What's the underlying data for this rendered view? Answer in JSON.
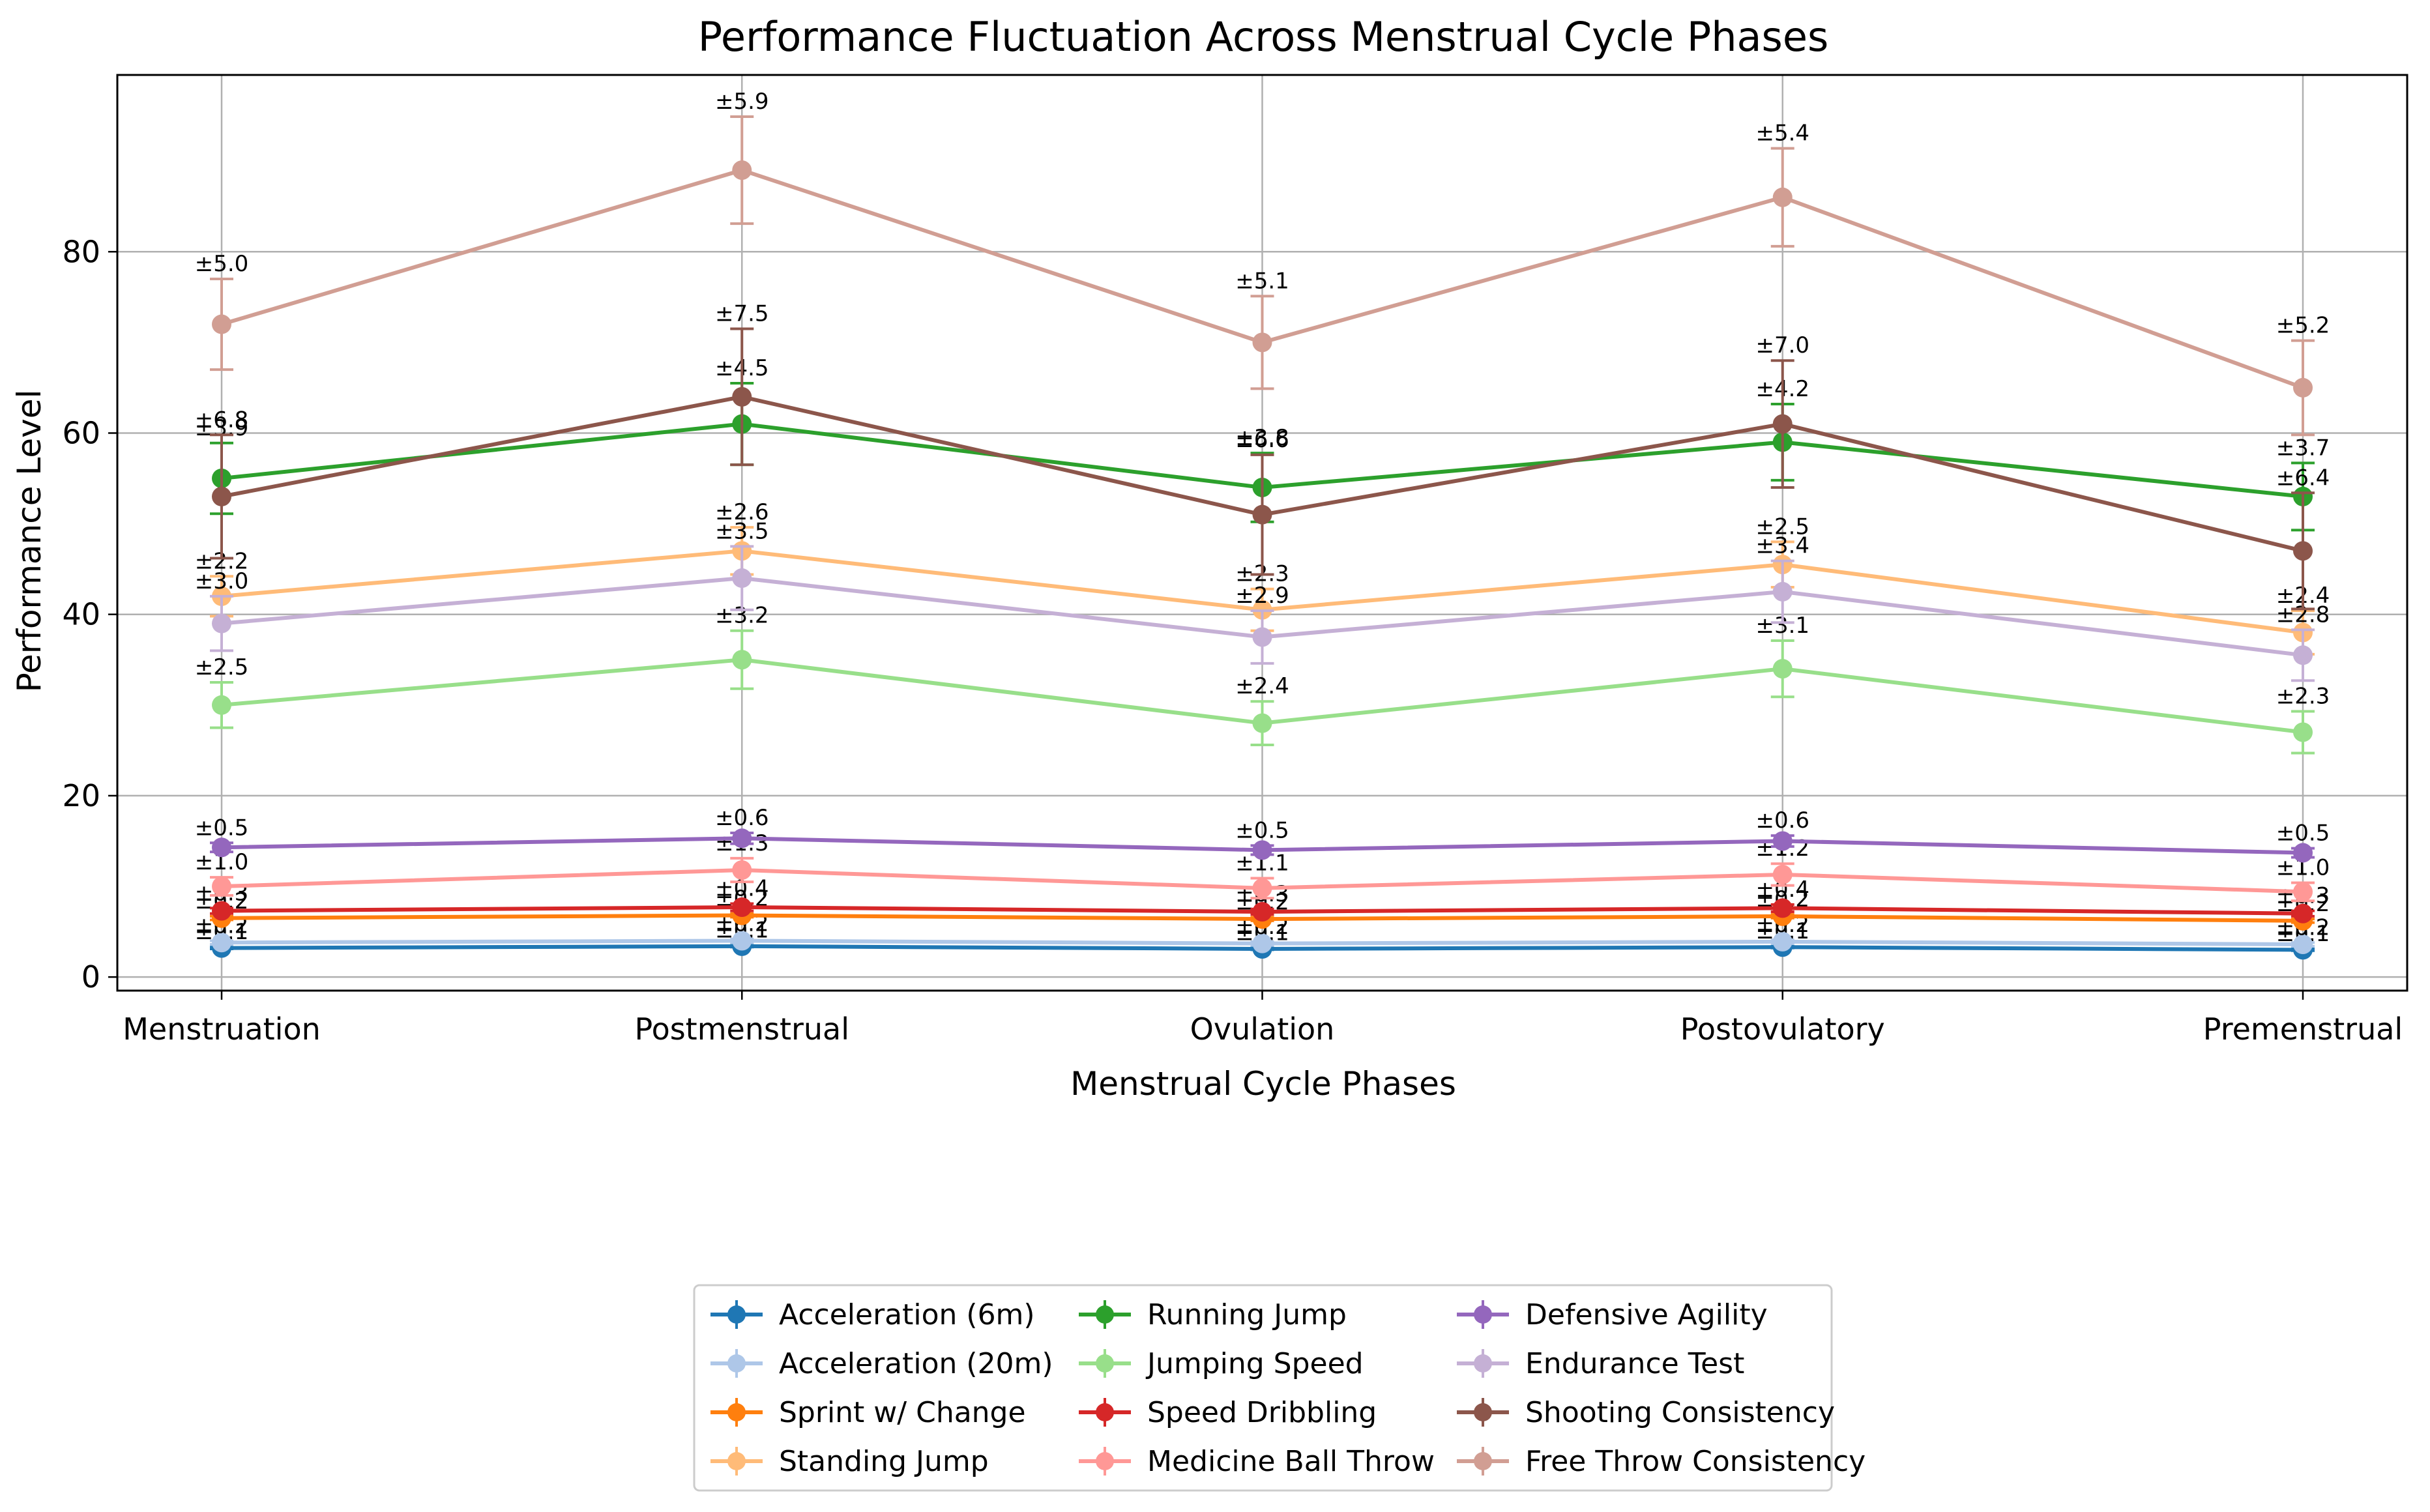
{
  "chart_data": {
    "type": "line",
    "title": "Performance Fluctuation Across Menstrual Cycle Phases",
    "xlabel": "Menstrual Cycle Phases",
    "ylabel": "Performance Level",
    "categories": [
      "Menstruation",
      "Postmenstrual",
      "Ovulation",
      "Postovulatory",
      "Premenstrual"
    ],
    "ylim": [
      -1.5,
      99.5
    ],
    "yticks": [
      0,
      20,
      40,
      60,
      80
    ],
    "grid": true,
    "legend_position": "bottom-center",
    "series": [
      {
        "name": "Acceleration (6m)",
        "color": "#1f77b4",
        "values": [
          3.2,
          3.4,
          3.1,
          3.3,
          3.0
        ],
        "errors": [
          "0.1",
          "0.1",
          "0.1",
          "0.1",
          "0.1"
        ]
      },
      {
        "name": "Acceleration (20m)",
        "color": "#aec7e8",
        "values": [
          3.8,
          4.0,
          3.7,
          3.9,
          3.6
        ],
        "errors": [
          "0.2",
          "0.2",
          "0.2",
          "0.2",
          "0.2"
        ]
      },
      {
        "name": "Sprint w/ Change",
        "color": "#ff7f0e",
        "values": [
          6.5,
          6.8,
          6.4,
          6.7,
          6.2
        ],
        "errors": [
          "0.2",
          "0.2",
          "0.2",
          "0.2",
          "0.2"
        ]
      },
      {
        "name": "Standing Jump",
        "color": "#ffbb78",
        "values": [
          42,
          47,
          40.5,
          45.5,
          38
        ],
        "errors": [
          "2.2",
          "2.6",
          "2.3",
          "2.5",
          "2.4"
        ]
      },
      {
        "name": "Running Jump",
        "color": "#2ca02c",
        "values": [
          55,
          61,
          54,
          59,
          53
        ],
        "errors": [
          "3.9",
          "4.5",
          "3.8",
          "4.2",
          "3.7"
        ]
      },
      {
        "name": "Jumping Speed",
        "color": "#98df8a",
        "values": [
          30,
          35,
          28,
          34,
          27
        ],
        "errors": [
          "2.5",
          "3.2",
          "2.4",
          "3.1",
          "2.3"
        ]
      },
      {
        "name": "Speed Dribbling",
        "color": "#d62728",
        "values": [
          7.3,
          7.7,
          7.2,
          7.6,
          7.0
        ],
        "errors": [
          "0.3",
          "0.4",
          "0.3",
          "0.4",
          "0.3"
        ]
      },
      {
        "name": "Medicine Ball Throw",
        "color": "#ff9896",
        "values": [
          10,
          11.8,
          9.8,
          11.3,
          9.4
        ],
        "errors": [
          "1.0",
          "1.3",
          "1.1",
          "1.2",
          "1.0"
        ]
      },
      {
        "name": "Defensive Agility",
        "color": "#9467bd",
        "values": [
          14.3,
          15.3,
          14.0,
          15.0,
          13.7
        ],
        "errors": [
          "0.5",
          "0.6",
          "0.5",
          "0.6",
          "0.5"
        ]
      },
      {
        "name": "Endurance Test",
        "color": "#c5b0d5",
        "values": [
          39,
          44,
          37.5,
          42.5,
          35.5
        ],
        "errors": [
          "3.0",
          "3.5",
          "2.9",
          "3.4",
          "2.8"
        ]
      },
      {
        "name": "Shooting Consistency",
        "color": "#8c564b",
        "values": [
          53,
          64,
          51,
          61,
          47
        ],
        "errors": [
          "6.8",
          "7.5",
          "6.6",
          "7.0",
          "6.4"
        ]
      },
      {
        "name": "Free Throw Consistency",
        "color": "#d19e93",
        "values": [
          72,
          89,
          70,
          86,
          65
        ],
        "errors": [
          "5.0",
          "5.9",
          "5.1",
          "5.4",
          "5.2"
        ]
      }
    ]
  }
}
